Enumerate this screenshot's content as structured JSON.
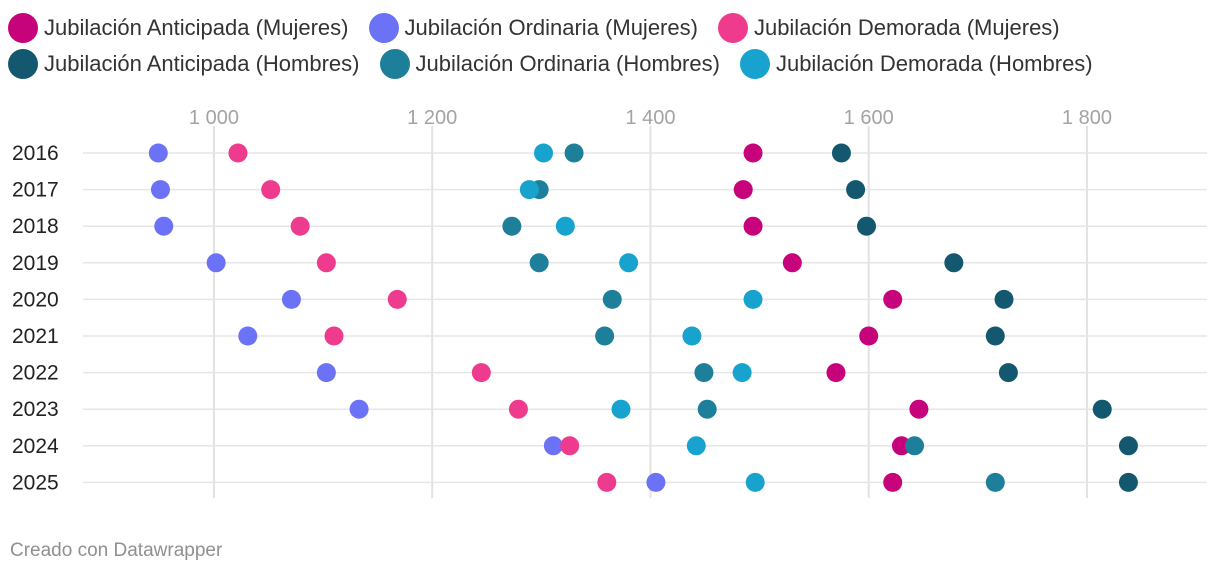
{
  "chart_data": {
    "type": "scatter",
    "title": "",
    "xlabel": "",
    "ylabel": "",
    "xlim": [
      880,
      1910
    ],
    "x_ticks": [
      1000,
      1200,
      1400,
      1600,
      1800
    ],
    "x_tick_labels": [
      "1 000",
      "1 200",
      "1 400",
      "1 600",
      "1 800"
    ],
    "categories": [
      "2016",
      "2017",
      "2018",
      "2019",
      "2020",
      "2021",
      "2022",
      "2023",
      "2024",
      "2025"
    ],
    "series": [
      {
        "name": "Jubilación Anticipada (Mujeres)",
        "color": "#c7037b",
        "values": [
          1494,
          1485,
          1494,
          1530,
          1622,
          1600,
          1570,
          1646,
          1630,
          1622
        ]
      },
      {
        "name": "Jubilación Ordinaria (Mujeres)",
        "color": "#6b72f5",
        "values": [
          949,
          951,
          954,
          1002,
          1071,
          1031,
          1103,
          1133,
          1311,
          1405
        ]
      },
      {
        "name": "Jubilación Demorada (Mujeres)",
        "color": "#ef3b8d",
        "values": [
          1022,
          1052,
          1079,
          1103,
          1168,
          1110,
          1245,
          1279,
          1326,
          1360
        ]
      },
      {
        "name": "Jubilación Anticipada (Hombres)",
        "color": "#13586f",
        "values": [
          1575,
          1588,
          1598,
          1678,
          1724,
          1716,
          1728,
          1814,
          1838,
          1838
        ]
      },
      {
        "name": "Jubilación Ordinaria (Hombres)",
        "color": "#1d7f99",
        "values": [
          1330,
          1298,
          1273,
          1298,
          1365,
          1358,
          1449,
          1452,
          1642,
          1716
        ]
      },
      {
        "name": "Jubilación Demorada (Hombres)",
        "color": "#18a3cf",
        "values": [
          1302,
          1289,
          1322,
          1380,
          1494,
          1438,
          1484,
          1373,
          1442,
          1496
        ]
      }
    ]
  },
  "credit": "Creado con Datawrapper"
}
